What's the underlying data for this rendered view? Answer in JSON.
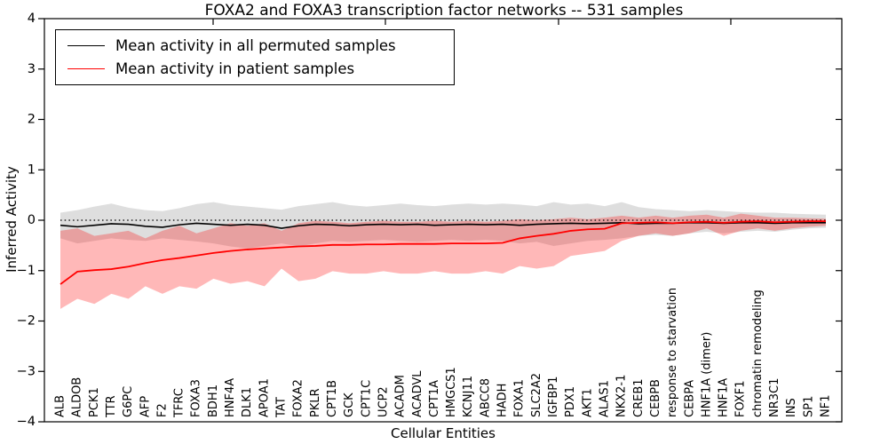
{
  "figure": {
    "title": "FOXA2 and FOXA3 transcription factor networks -- 531 samples",
    "xlabel": "Cellular Entities",
    "ylabel": "Inferred Activity"
  },
  "legend": {
    "items": [
      {
        "label": "Mean activity in all permuted samples",
        "color": "#000000"
      },
      {
        "label": "Mean activity in patient samples",
        "color": "#ff0000"
      }
    ]
  },
  "chart_data": {
    "type": "line",
    "title": "FOXA2 and FOXA3 transcription factor networks -- 531 samples",
    "xlabel": "Cellular Entities",
    "ylabel": "Inferred Activity",
    "ylim": [
      -4,
      4
    ],
    "yticks": [
      4,
      3,
      2,
      1,
      0,
      -1,
      -2,
      -3,
      -4
    ],
    "ytick_labels": [
      "4",
      "3",
      "2",
      "1",
      "0",
      "−1",
      "−2",
      "−3",
      "−4"
    ],
    "grid": false,
    "legend_position": "upper left",
    "zero_reference_line": {
      "y": 0,
      "style": "dotted",
      "color": "#000000"
    },
    "categories": [
      "ALB",
      "ALDOB",
      "PCK1",
      "TTR",
      "G6PC",
      "AFP",
      "F2",
      "TFRC",
      "FOXA3",
      "BDH1",
      "HNF4A",
      "DLK1",
      "APOA1",
      "TAT",
      "FOXA2",
      "PKLR",
      "CPT1B",
      "GCK",
      "CPT1C",
      "UCP2",
      "ACADM",
      "ACADVL",
      "CPT1A",
      "HMGCS1",
      "KCNJ11",
      "ABCC8",
      "HADH",
      "FOXA1",
      "SLC2A2",
      "IGFBP1",
      "PDX1",
      "AKT1",
      "ALAS1",
      "NKX2-1",
      "CREB1",
      "CEBPB",
      "response to starvation",
      "CEBPA",
      "HNF1A (dimer)",
      "HNF1A",
      "FOXF1",
      "chromatin remodeling",
      "NR3C1",
      "INS",
      "SP1",
      "NF1"
    ],
    "series": [
      {
        "name": "Mean activity in all permuted samples",
        "color": "#000000",
        "line_width": 1.6,
        "band_color": "#000000",
        "band_opacity": 0.13,
        "values": [
          -0.1,
          -0.13,
          -0.1,
          -0.07,
          -0.08,
          -0.12,
          -0.14,
          -0.09,
          -0.06,
          -0.08,
          -0.1,
          -0.08,
          -0.1,
          -0.16,
          -0.11,
          -0.08,
          -0.09,
          -0.11,
          -0.09,
          -0.08,
          -0.09,
          -0.08,
          -0.1,
          -0.09,
          -0.08,
          -0.09,
          -0.08,
          -0.1,
          -0.08,
          -0.07,
          -0.06,
          -0.07,
          -0.06,
          -0.05,
          -0.07,
          -0.06,
          -0.06,
          -0.05,
          -0.05,
          -0.06,
          -0.05,
          -0.05,
          -0.06,
          -0.05,
          -0.05,
          -0.05
        ],
        "band_upper": [
          0.15,
          0.2,
          0.27,
          0.33,
          0.25,
          0.2,
          0.18,
          0.24,
          0.32,
          0.36,
          0.3,
          0.27,
          0.24,
          0.21,
          0.28,
          0.32,
          0.36,
          0.3,
          0.27,
          0.3,
          0.33,
          0.3,
          0.28,
          0.31,
          0.33,
          0.31,
          0.33,
          0.31,
          0.28,
          0.36,
          0.31,
          0.33,
          0.28,
          0.36,
          0.26,
          0.22,
          0.2,
          0.18,
          0.2,
          0.18,
          0.16,
          0.15,
          0.15,
          0.13,
          0.12,
          0.11
        ],
        "band_lower": [
          -0.36,
          -0.46,
          -0.41,
          -0.36,
          -0.39,
          -0.41,
          -0.36,
          -0.39,
          -0.42,
          -0.46,
          -0.52,
          -0.56,
          -0.51,
          -0.46,
          -0.52,
          -0.46,
          -0.41,
          -0.43,
          -0.41,
          -0.39,
          -0.41,
          -0.43,
          -0.41,
          -0.39,
          -0.41,
          -0.39,
          -0.41,
          -0.46,
          -0.43,
          -0.51,
          -0.46,
          -0.41,
          -0.39,
          -0.36,
          -0.31,
          -0.29,
          -0.31,
          -0.26,
          -0.23,
          -0.26,
          -0.23,
          -0.21,
          -0.23,
          -0.19,
          -0.16,
          -0.15
        ]
      },
      {
        "name": "Mean activity in patient samples",
        "color": "#ff0000",
        "line_width": 1.8,
        "band_color": "#ff0000",
        "band_opacity": 0.28,
        "values": [
          -1.27,
          -1.02,
          -0.99,
          -0.97,
          -0.92,
          -0.85,
          -0.79,
          -0.75,
          -0.7,
          -0.65,
          -0.61,
          -0.58,
          -0.56,
          -0.54,
          -0.52,
          -0.51,
          -0.49,
          -0.49,
          -0.48,
          -0.48,
          -0.47,
          -0.47,
          -0.47,
          -0.46,
          -0.46,
          -0.46,
          -0.45,
          -0.36,
          -0.31,
          -0.27,
          -0.21,
          -0.18,
          -0.17,
          -0.06,
          -0.05,
          -0.04,
          -0.06,
          -0.04,
          -0.03,
          -0.05,
          -0.03,
          -0.02,
          -0.04,
          -0.03,
          -0.02,
          -0.02
        ],
        "band_upper": [
          -0.21,
          -0.16,
          -0.31,
          -0.26,
          -0.21,
          -0.36,
          -0.21,
          -0.11,
          -0.26,
          -0.16,
          -0.06,
          -0.11,
          -0.06,
          -0.21,
          -0.06,
          -0.01,
          -0.03,
          -0.06,
          -0.03,
          -0.01,
          -0.03,
          -0.03,
          -0.01,
          -0.03,
          -0.01,
          -0.03,
          -0.01,
          0.02,
          0.0,
          0.02,
          0.05,
          0.02,
          0.05,
          0.09,
          0.05,
          0.09,
          0.05,
          0.09,
          0.11,
          0.05,
          0.13,
          0.09,
          0.05,
          0.05,
          0.04,
          0.03
        ],
        "band_lower": [
          -1.76,
          -1.56,
          -1.66,
          -1.46,
          -1.56,
          -1.31,
          -1.46,
          -1.31,
          -1.36,
          -1.16,
          -1.26,
          -1.21,
          -1.31,
          -0.96,
          -1.21,
          -1.16,
          -1.01,
          -1.06,
          -1.06,
          -1.01,
          -1.06,
          -1.06,
          -1.01,
          -1.06,
          -1.06,
          -1.01,
          -1.06,
          -0.91,
          -0.96,
          -0.91,
          -0.71,
          -0.66,
          -0.61,
          -0.41,
          -0.31,
          -0.26,
          -0.31,
          -0.26,
          -0.16,
          -0.31,
          -0.21,
          -0.16,
          -0.21,
          -0.16,
          -0.13,
          -0.11
        ]
      }
    ]
  }
}
